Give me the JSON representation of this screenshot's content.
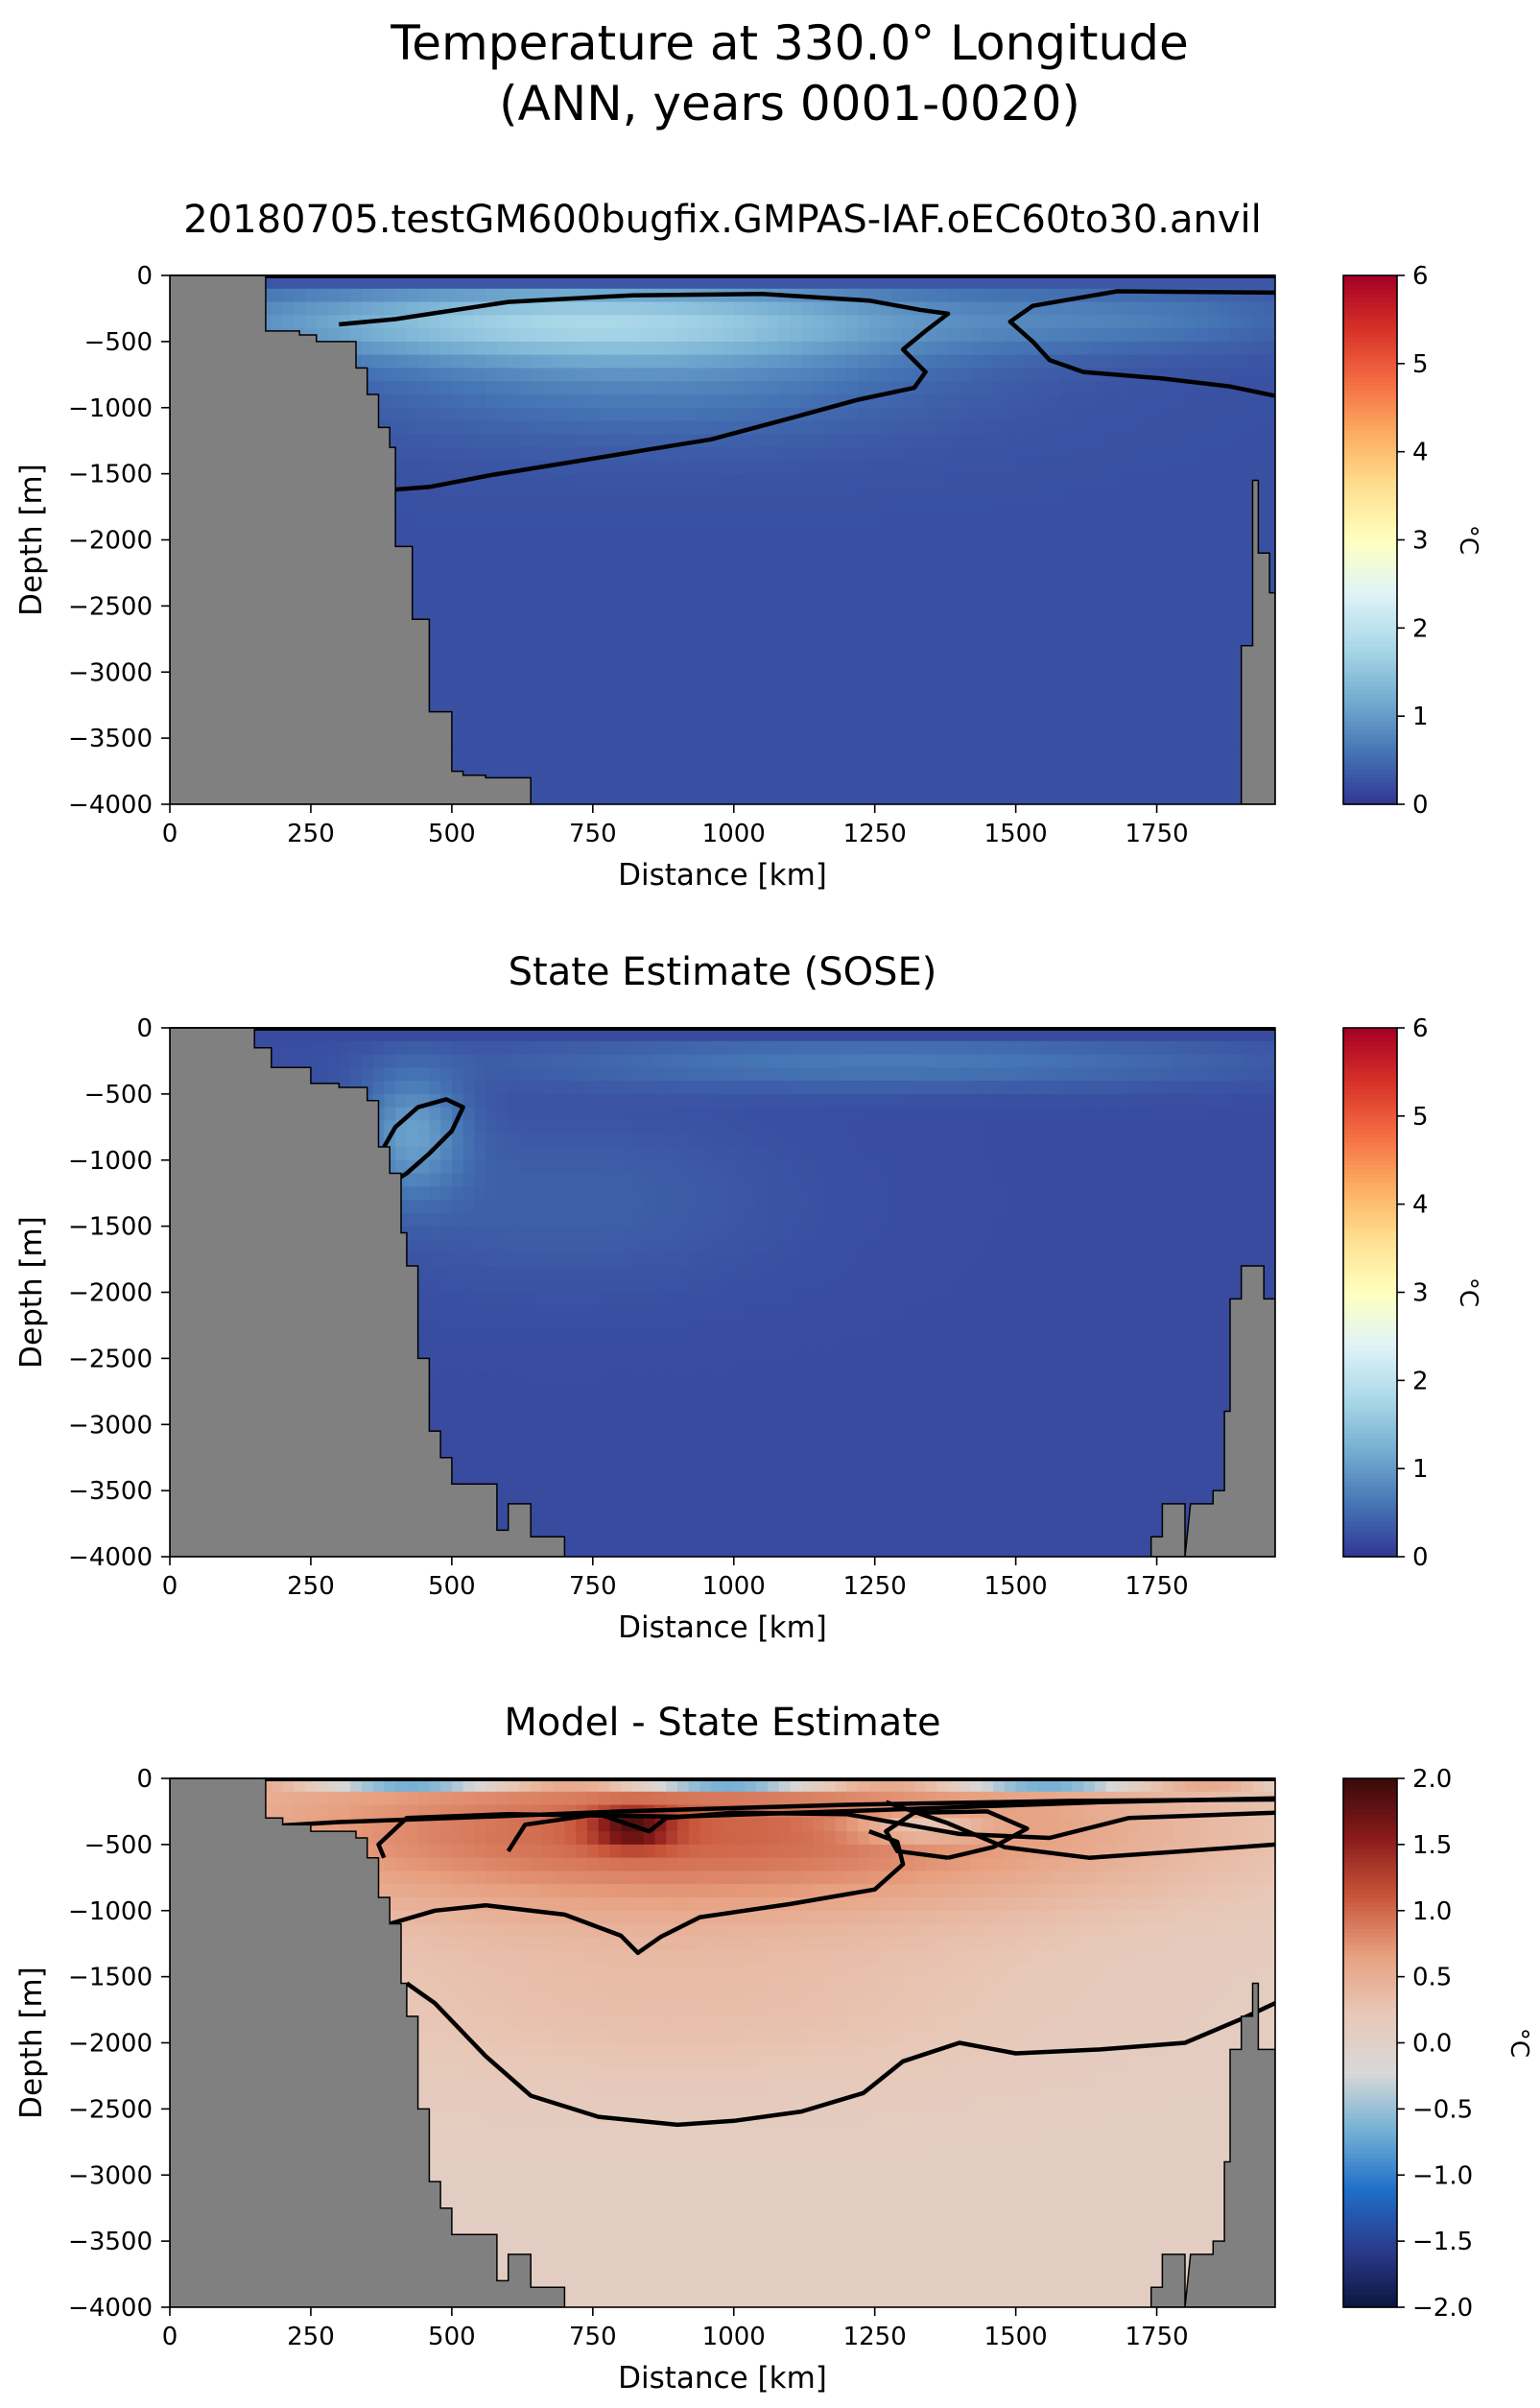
{
  "figure": {
    "title_line1": "Temperature at 330.0° Longitude",
    "title_line2": "(ANN, years 0001-0020)"
  },
  "colors": {
    "land": "#808080",
    "temp_cmap": [
      "#313695",
      "#4575b4",
      "#74add1",
      "#abd9e9",
      "#e0f3f8",
      "#ffffbf",
      "#fee090",
      "#fdae61",
      "#f46d43",
      "#d73027",
      "#a50026"
    ],
    "diff_cmap": [
      "#0d1640",
      "#2a3b8c",
      "#1f6ec8",
      "#73b0d6",
      "#d8d8d8",
      "#e8c8b8",
      "#e7a080",
      "#c8553a",
      "#8a1a1a",
      "#3a0a0a"
    ],
    "contour": "#000000"
  },
  "chart_data": [
    {
      "type": "heatmap",
      "title": "20180705.testGM600bugfix.GMPAS-IAF.oEC60to30.anvil",
      "xlabel": "Distance [km]",
      "ylabel": "Depth [m]",
      "xlim": [
        0,
        1960
      ],
      "ylim": [
        -4000,
        0
      ],
      "xticks": [
        0,
        250,
        500,
        750,
        1000,
        1250,
        1500,
        1750
      ],
      "yticks": [
        0,
        -500,
        -1000,
        -1500,
        -2000,
        -2500,
        -3000,
        -3500,
        -4000
      ],
      "colorbar": {
        "label": "°C",
        "min": 0,
        "max": 6,
        "ticks": [
          0,
          1,
          2,
          3,
          4,
          5,
          6
        ],
        "cmap": "RdYlBu_r"
      },
      "field": "model",
      "contour_levels": [
        1.0
      ],
      "bathymetry_left": [
        [
          0,
          0
        ],
        [
          170,
          0
        ],
        [
          170,
          -420
        ],
        [
          230,
          -420
        ],
        [
          230,
          -450
        ],
        [
          260,
          -450
        ],
        [
          260,
          -500
        ],
        [
          330,
          -500
        ],
        [
          330,
          -700
        ],
        [
          350,
          -700
        ],
        [
          350,
          -900
        ],
        [
          370,
          -900
        ],
        [
          370,
          -1150
        ],
        [
          390,
          -1150
        ],
        [
          390,
          -1300
        ],
        [
          400,
          -1300
        ],
        [
          400,
          -2050
        ],
        [
          430,
          -2050
        ],
        [
          430,
          -2600
        ],
        [
          460,
          -2600
        ],
        [
          460,
          -3300
        ],
        [
          500,
          -3300
        ],
        [
          500,
          -3750
        ],
        [
          520,
          -3750
        ],
        [
          520,
          -3780
        ],
        [
          560,
          -3780
        ],
        [
          560,
          -3800
        ],
        [
          640,
          -3800
        ],
        [
          640,
          -4000
        ],
        [
          0,
          -4000
        ]
      ],
      "bathymetry_right": [
        [
          1960,
          -4000
        ],
        [
          1900,
          -4000
        ],
        [
          1900,
          -2800
        ],
        [
          1920,
          -2800
        ],
        [
          1920,
          -1550
        ],
        [
          1930,
          -1550
        ],
        [
          1930,
          -2100
        ],
        [
          1950,
          -2100
        ],
        [
          1950,
          -2400
        ],
        [
          1960,
          -2400
        ]
      ]
    },
    {
      "type": "heatmap",
      "title": "State Estimate (SOSE)",
      "xlabel": "Distance [km]",
      "ylabel": "Depth [m]",
      "xlim": [
        0,
        1960
      ],
      "ylim": [
        -4000,
        0
      ],
      "xticks": [
        0,
        250,
        500,
        750,
        1000,
        1250,
        1500,
        1750
      ],
      "yticks": [
        0,
        -500,
        -1000,
        -1500,
        -2000,
        -2500,
        -3000,
        -3500,
        -4000
      ],
      "colorbar": {
        "label": "°C",
        "min": 0,
        "max": 6,
        "ticks": [
          0,
          1,
          2,
          3,
          4,
          5,
          6
        ],
        "cmap": "RdYlBu_r"
      },
      "field": "sose",
      "contour_levels": [
        1.0
      ],
      "bathymetry_left": [
        [
          0,
          0
        ],
        [
          150,
          0
        ],
        [
          150,
          -150
        ],
        [
          180,
          -150
        ],
        [
          180,
          -300
        ],
        [
          250,
          -300
        ],
        [
          250,
          -420
        ],
        [
          300,
          -420
        ],
        [
          300,
          -450
        ],
        [
          350,
          -450
        ],
        [
          350,
          -550
        ],
        [
          370,
          -550
        ],
        [
          370,
          -900
        ],
        [
          390,
          -900
        ],
        [
          390,
          -1100
        ],
        [
          410,
          -1100
        ],
        [
          410,
          -1550
        ],
        [
          420,
          -1550
        ],
        [
          420,
          -1800
        ],
        [
          440,
          -1800
        ],
        [
          440,
          -2500
        ],
        [
          460,
          -2500
        ],
        [
          460,
          -3050
        ],
        [
          480,
          -3050
        ],
        [
          480,
          -3250
        ],
        [
          500,
          -3250
        ],
        [
          500,
          -3450
        ],
        [
          580,
          -3450
        ],
        [
          580,
          -3800
        ],
        [
          600,
          -3800
        ],
        [
          600,
          -3600
        ],
        [
          640,
          -3600
        ],
        [
          640,
          -3850
        ],
        [
          700,
          -3850
        ],
        [
          700,
          -4000
        ],
        [
          0,
          -4000
        ]
      ],
      "bathymetry_right": [
        [
          1960,
          -4000
        ],
        [
          1800,
          -4000
        ],
        [
          1800,
          -3600
        ],
        [
          1760,
          -3600
        ],
        [
          1760,
          -3850
        ],
        [
          1740,
          -3850
        ],
        [
          1740,
          -4000
        ],
        [
          1800,
          -4000
        ],
        [
          1810,
          -3600
        ],
        [
          1850,
          -3600
        ],
        [
          1850,
          -3500
        ],
        [
          1870,
          -3500
        ],
        [
          1870,
          -2900
        ],
        [
          1880,
          -2900
        ],
        [
          1880,
          -2050
        ],
        [
          1900,
          -2050
        ],
        [
          1900,
          -1800
        ],
        [
          1940,
          -1800
        ],
        [
          1940,
          -2050
        ],
        [
          1960,
          -2050
        ]
      ]
    },
    {
      "type": "heatmap",
      "title": "Model - State Estimate",
      "xlabel": "Distance [km]",
      "ylabel": "Depth [m]",
      "xlim": [
        0,
        1960
      ],
      "ylim": [
        -4000,
        0
      ],
      "xticks": [
        0,
        250,
        500,
        750,
        1000,
        1250,
        1500,
        1750
      ],
      "yticks": [
        0,
        -500,
        -1000,
        -1500,
        -2000,
        -2500,
        -3000,
        -3500,
        -4000
      ],
      "colorbar": {
        "label": "°C",
        "min": -2.0,
        "max": 2.0,
        "ticks": [
          -2.0,
          -1.5,
          -1.0,
          -0.5,
          0.0,
          0.5,
          1.0,
          1.5,
          2.0
        ],
        "cmap": "RdBu_r"
      },
      "field": "diff",
      "contour_levels": [
        0.25,
        0.5,
        0.75,
        1.0
      ],
      "bathymetry_left": [
        [
          0,
          0
        ],
        [
          170,
          0
        ],
        [
          170,
          -300
        ],
        [
          200,
          -300
        ],
        [
          200,
          -350
        ],
        [
          250,
          -350
        ],
        [
          250,
          -400
        ],
        [
          330,
          -400
        ],
        [
          330,
          -450
        ],
        [
          350,
          -450
        ],
        [
          350,
          -600
        ],
        [
          370,
          -600
        ],
        [
          370,
          -900
        ],
        [
          390,
          -900
        ],
        [
          390,
          -1100
        ],
        [
          410,
          -1100
        ],
        [
          410,
          -1550
        ],
        [
          420,
          -1550
        ],
        [
          420,
          -1800
        ],
        [
          440,
          -1800
        ],
        [
          440,
          -2500
        ],
        [
          460,
          -2500
        ],
        [
          460,
          -3050
        ],
        [
          480,
          -3050
        ],
        [
          480,
          -3250
        ],
        [
          500,
          -3250
        ],
        [
          500,
          -3450
        ],
        [
          580,
          -3450
        ],
        [
          580,
          -3800
        ],
        [
          600,
          -3800
        ],
        [
          600,
          -3600
        ],
        [
          640,
          -3600
        ],
        [
          640,
          -3850
        ],
        [
          700,
          -3850
        ],
        [
          700,
          -4000
        ],
        [
          0,
          -4000
        ]
      ],
      "bathymetry_right": [
        [
          1960,
          -4000
        ],
        [
          1800,
          -4000
        ],
        [
          1800,
          -3600
        ],
        [
          1760,
          -3600
        ],
        [
          1760,
          -3850
        ],
        [
          1740,
          -3850
        ],
        [
          1740,
          -4000
        ],
        [
          1800,
          -4000
        ],
        [
          1810,
          -3600
        ],
        [
          1850,
          -3600
        ],
        [
          1850,
          -3500
        ],
        [
          1870,
          -3500
        ],
        [
          1870,
          -2900
        ],
        [
          1880,
          -2900
        ],
        [
          1880,
          -2050
        ],
        [
          1900,
          -2050
        ],
        [
          1900,
          -1800
        ],
        [
          1920,
          -1800
        ],
        [
          1920,
          -1550
        ],
        [
          1930,
          -1550
        ],
        [
          1930,
          -2050
        ],
        [
          1960,
          -2050
        ]
      ]
    }
  ]
}
